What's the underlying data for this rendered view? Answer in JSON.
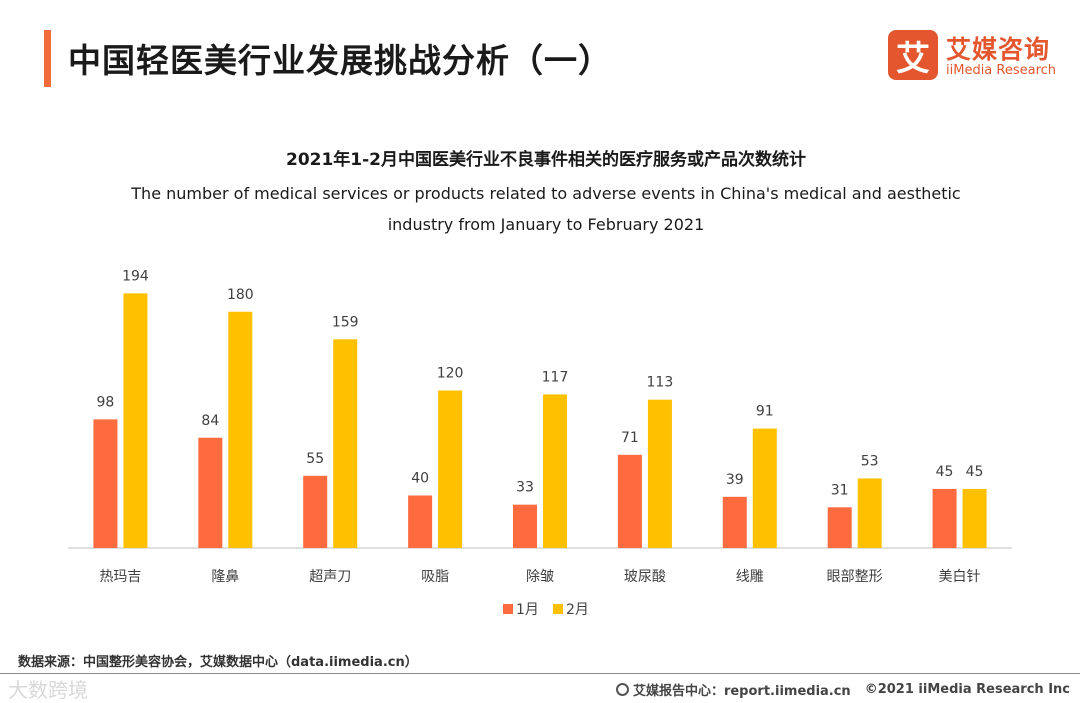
{
  "header": {
    "title": "中国轻医美行业发展挑战分析（一）",
    "logo_mark": "艾",
    "logo_cn": "艾媒咨询",
    "logo_en": "iiMedia Research"
  },
  "chart_data": {
    "type": "bar",
    "title": "2021年1-2月中国医美行业不良事件相关的医疗服务或产品次数统计",
    "subtitle_line1": "The number of medical services or products related to adverse events in China's medical and aesthetic",
    "subtitle_line2": "industry from January to February 2021",
    "categories": [
      "热玛吉",
      "隆鼻",
      "超声刀",
      "吸脂",
      "除皱",
      "玻尿酸",
      "线雕",
      "眼部整形",
      "美白针"
    ],
    "series": [
      {
        "name": "1月",
        "color": "#fe6b3f",
        "values": [
          98,
          84,
          55,
          40,
          33,
          71,
          39,
          31,
          45
        ]
      },
      {
        "name": "2月",
        "color": "#ffc000",
        "values": [
          194,
          180,
          159,
          120,
          117,
          113,
          91,
          53,
          45
        ]
      }
    ],
    "ylim": [
      0,
      200
    ],
    "xlabel": "",
    "ylabel": "",
    "grid": false,
    "legend": "bottom-center"
  },
  "footer": {
    "source": "数据来源：中国整形美容协会，艾媒数据中心（data.iimedia.cn）",
    "watermark": "大数跨境",
    "report": "艾媒报告中心：report.iimedia.cn",
    "copyright": "©2021  iiMedia Research  Inc"
  }
}
